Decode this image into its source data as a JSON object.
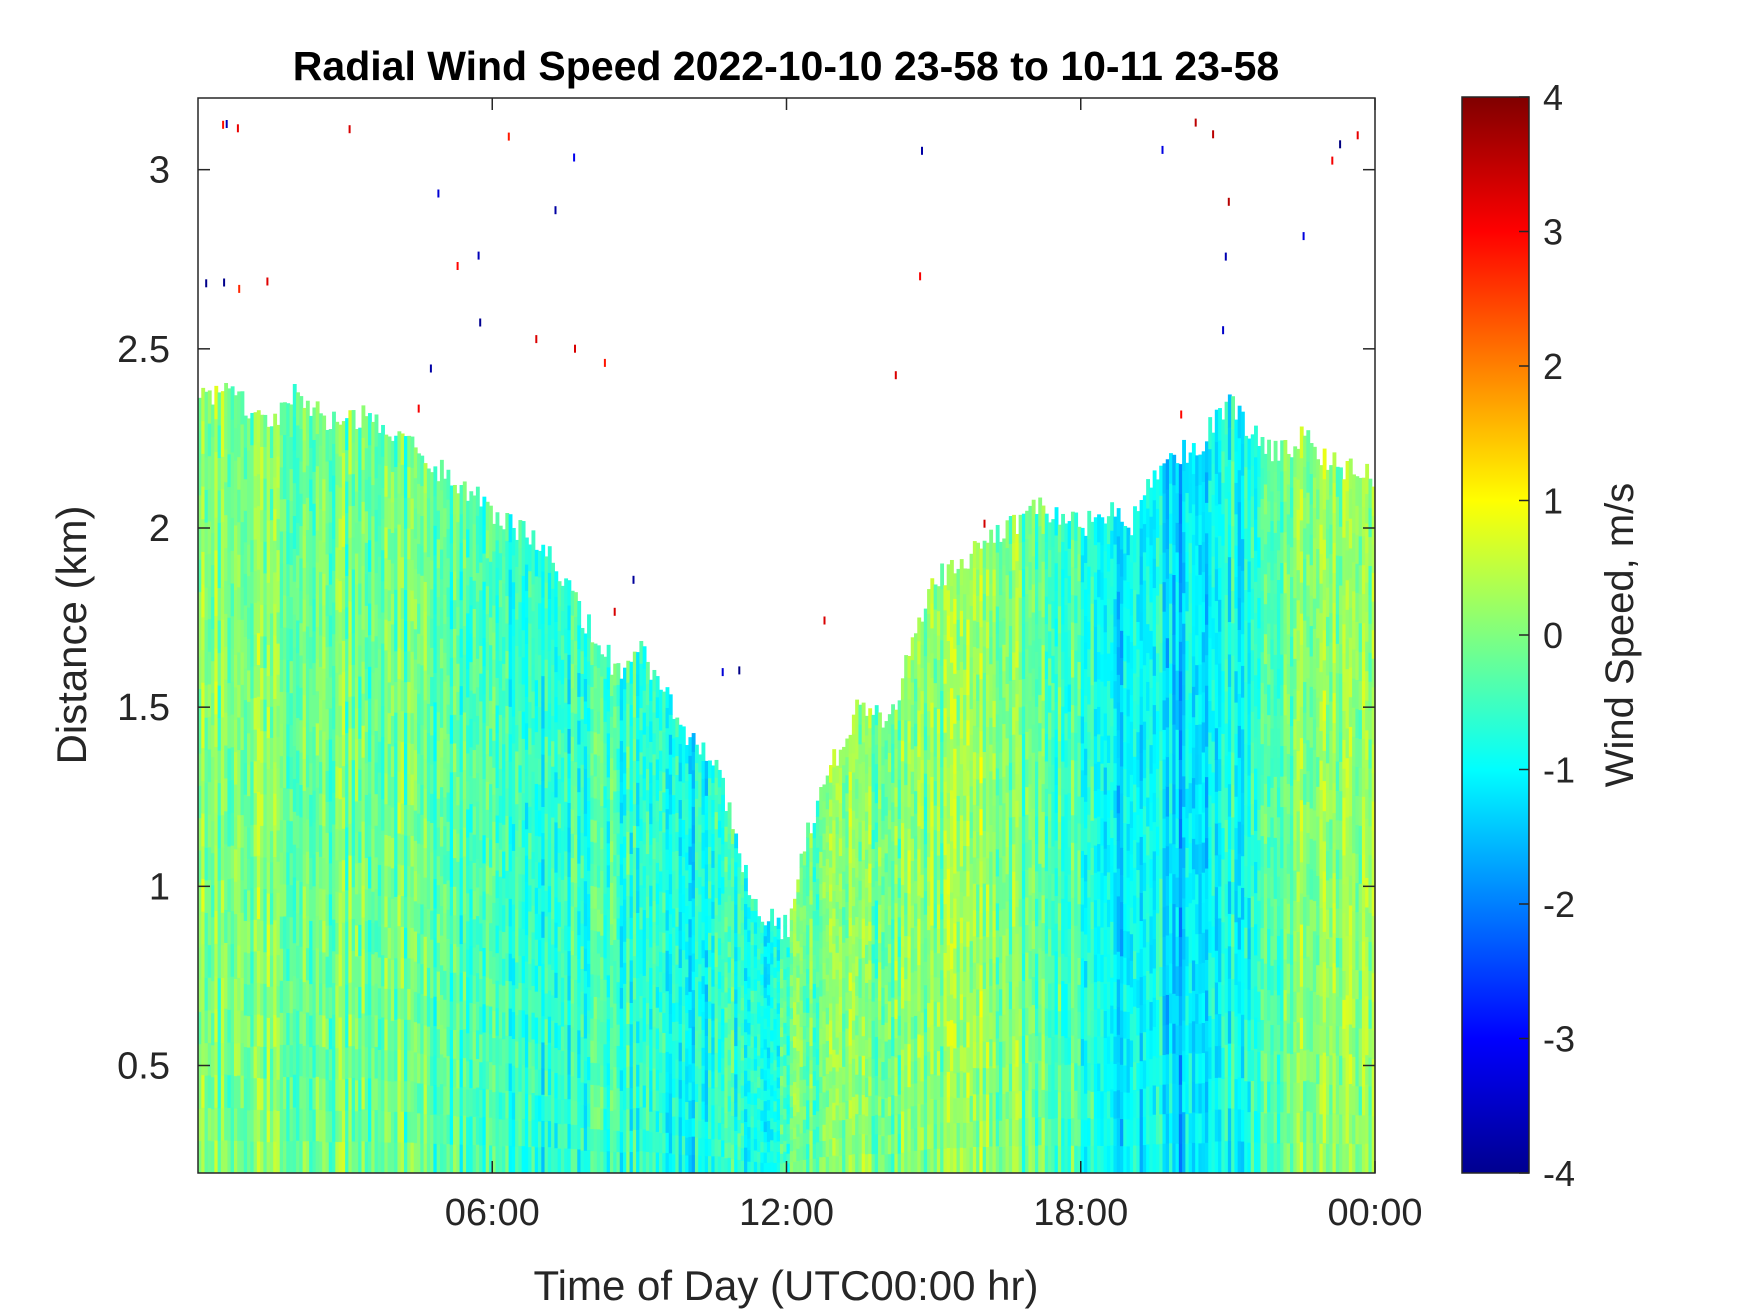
{
  "chart_data": {
    "type": "heatmap",
    "title": "Radial Wind Speed 2022-10-10 23-58 to 10-11 23-58",
    "xlabel": "Time of Day (UTC00:00 hr)",
    "ylabel": "Distance (km)",
    "xlim": [
      0,
      24
    ],
    "ylim": [
      0.2,
      3.2
    ],
    "x_ticks": [
      {
        "value": 6,
        "label": "06:00"
      },
      {
        "value": 12,
        "label": "12:00"
      },
      {
        "value": 18,
        "label": "18:00"
      },
      {
        "value": 24,
        "label": "00:00"
      }
    ],
    "y_ticks": [
      {
        "value": 0.5,
        "label": "0.5"
      },
      {
        "value": 1.0,
        "label": "1"
      },
      {
        "value": 1.5,
        "label": "1.5"
      },
      {
        "value": 2.0,
        "label": "2"
      },
      {
        "value": 2.5,
        "label": "2.5"
      },
      {
        "value": 3.0,
        "label": "3"
      }
    ],
    "colorbar": {
      "label": "Wind Speed, m/s",
      "colormap": "jet",
      "range": [
        -4,
        4
      ],
      "ticks": [
        {
          "value": 4,
          "label": "4"
        },
        {
          "value": 3,
          "label": "3"
        },
        {
          "value": 2,
          "label": "2"
        },
        {
          "value": 1,
          "label": "1"
        },
        {
          "value": 0,
          "label": "0"
        },
        {
          "value": -1,
          "label": "-1"
        },
        {
          "value": -2,
          "label": "-2"
        },
        {
          "value": -3,
          "label": "-3"
        },
        {
          "value": -4,
          "label": "-4"
        }
      ]
    },
    "data_top_profile": {
      "time_hr": [
        0,
        0.5,
        1.0,
        1.5,
        2.0,
        2.5,
        3.0,
        3.5,
        4.0,
        4.5,
        5.0,
        5.5,
        6.0,
        6.5,
        7.0,
        7.5,
        8.0,
        8.5,
        9.0,
        9.5,
        10.0,
        10.5,
        11.0,
        11.3,
        11.6,
        12.0,
        12.2,
        12.5,
        12.8,
        13.2,
        13.5,
        14.0,
        14.5,
        15.0,
        15.5,
        16.0,
        16.5,
        17.0,
        17.5,
        18.0,
        18.5,
        19.0,
        19.5,
        20.0,
        20.5,
        21.0,
        21.5,
        22.0,
        22.5,
        23.0,
        23.5,
        24.0
      ],
      "top_km": [
        2.35,
        2.4,
        2.32,
        2.3,
        2.38,
        2.3,
        2.32,
        2.3,
        2.25,
        2.2,
        2.15,
        2.1,
        2.05,
        2.0,
        1.95,
        1.85,
        1.7,
        1.6,
        1.65,
        1.55,
        1.4,
        1.35,
        1.1,
        0.95,
        0.9,
        0.88,
        1.05,
        1.2,
        1.3,
        1.45,
        1.5,
        1.45,
        1.65,
        1.85,
        1.9,
        1.95,
        2.0,
        2.05,
        2.05,
        2.0,
        2.05,
        2.0,
        2.15,
        2.2,
        2.25,
        2.35,
        2.25,
        2.2,
        2.25,
        2.2,
        2.15,
        2.15
      ]
    },
    "data_column_means_ms": {
      "time_hr": [
        0,
        2,
        4,
        6,
        7,
        8,
        9,
        10,
        11,
        11.5,
        12,
        13,
        14,
        16,
        18,
        19,
        19.5,
        20,
        21,
        22,
        23,
        24
      ],
      "mean_speed": [
        0.1,
        0.0,
        -0.2,
        -0.4,
        -0.9,
        -0.5,
        -0.7,
        -0.9,
        -0.6,
        -1.2,
        -0.3,
        0.1,
        -0.1,
        0.2,
        -0.5,
        -1.3,
        -1.0,
        -1.4,
        -0.8,
        -0.3,
        0.2,
        0.0
      ]
    }
  }
}
